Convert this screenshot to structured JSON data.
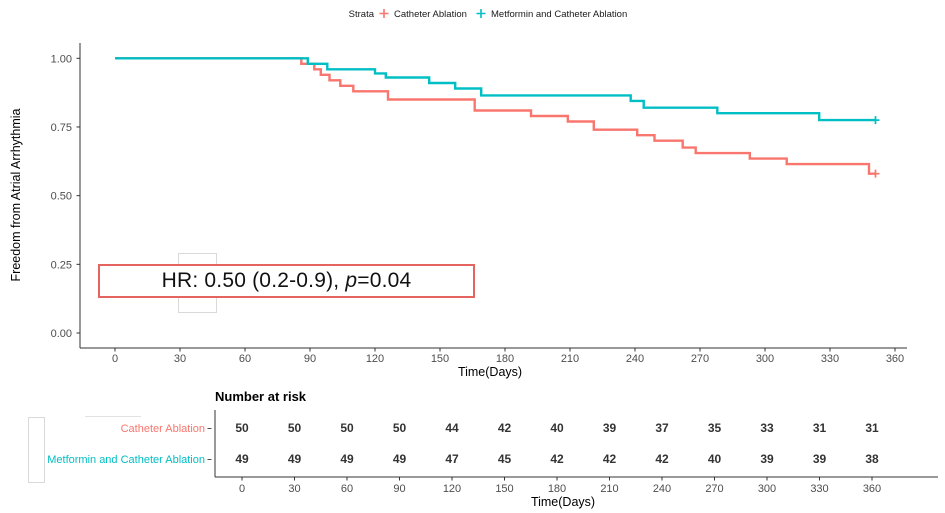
{
  "colors": {
    "stratum1": "#F8766D",
    "stratum2": "#00BFC4",
    "annotation_border": "#E4655F",
    "axis": "#333333",
    "tick_text": "#4D4D4D",
    "artifact_border": "#D9D9D9"
  },
  "chart_data": {
    "type": "line",
    "subtype": "kaplan-meier-step",
    "title": "",
    "xlabel": "Time(Days)",
    "ylabel": "Freedom from Atrial Arrhythmia",
    "xlim": [
      0,
      375
    ],
    "ylim": [
      0,
      1.0
    ],
    "grid": false,
    "legend_position": "top",
    "xticks": [
      0,
      30,
      60,
      90,
      120,
      150,
      180,
      210,
      240,
      270,
      300,
      330,
      360
    ],
    "yticks": [
      0,
      0.25,
      0.5,
      0.75,
      1.0
    ],
    "ytick_labels": [
      "0.00",
      "0.25",
      "0.50",
      "0.75",
      "1.00"
    ],
    "legend": {
      "title": "Strata",
      "entries": [
        {
          "label": "Catheter Ablation",
          "color": "#F8766D",
          "marker": "plus"
        },
        {
          "label": "Metformin and Catheter Ablation",
          "color": "#00BFC4",
          "marker": "plus"
        }
      ]
    },
    "annotation": {
      "prefix": "HR: 0.50 (0.2-0.9), ",
      "italic": "p",
      "suffix": "=0.04"
    },
    "series": [
      {
        "name": "Catheter Ablation",
        "color": "#F8766D",
        "steps": [
          [
            0,
            1.0
          ],
          [
            86,
            0.98
          ],
          [
            92,
            0.96
          ],
          [
            95,
            0.94
          ],
          [
            99,
            0.92
          ],
          [
            104,
            0.9
          ],
          [
            110,
            0.88
          ],
          [
            126,
            0.85
          ],
          [
            166,
            0.81
          ],
          [
            192,
            0.79
          ],
          [
            209,
            0.77
          ],
          [
            221,
            0.74
          ],
          [
            241,
            0.72
          ],
          [
            249,
            0.7
          ],
          [
            262,
            0.675
          ],
          [
            268,
            0.655
          ],
          [
            293,
            0.635
          ],
          [
            310,
            0.615
          ],
          [
            348,
            0.58
          ]
        ],
        "censor_time": 351,
        "final_survival": 0.58
      },
      {
        "name": "Metformin and Catheter Ablation",
        "color": "#00BFC4",
        "steps": [
          [
            0,
            1.0
          ],
          [
            89,
            0.98
          ],
          [
            98,
            0.96
          ],
          [
            120,
            0.945
          ],
          [
            125,
            0.93
          ],
          [
            145,
            0.91
          ],
          [
            157,
            0.89
          ],
          [
            169,
            0.865
          ],
          [
            238,
            0.845
          ],
          [
            244,
            0.82
          ],
          [
            278,
            0.8
          ],
          [
            325,
            0.775
          ]
        ],
        "censor_time": 351,
        "final_survival": 0.775
      }
    ],
    "risk_table": {
      "title": "Number at risk",
      "xlabel": "Time(Days)",
      "times": [
        0,
        30,
        60,
        90,
        120,
        150,
        180,
        210,
        240,
        270,
        300,
        330,
        360
      ],
      "rows": [
        {
          "name": "Catheter Ablation",
          "color": "#F8766D",
          "counts": [
            50,
            50,
            50,
            50,
            44,
            42,
            40,
            39,
            37,
            35,
            33,
            31,
            31
          ]
        },
        {
          "name": "Metformin and Catheter Ablation",
          "color": "#00BFC4",
          "counts": [
            49,
            49,
            49,
            49,
            47,
            45,
            42,
            42,
            42,
            40,
            39,
            39,
            38
          ]
        }
      ]
    }
  }
}
